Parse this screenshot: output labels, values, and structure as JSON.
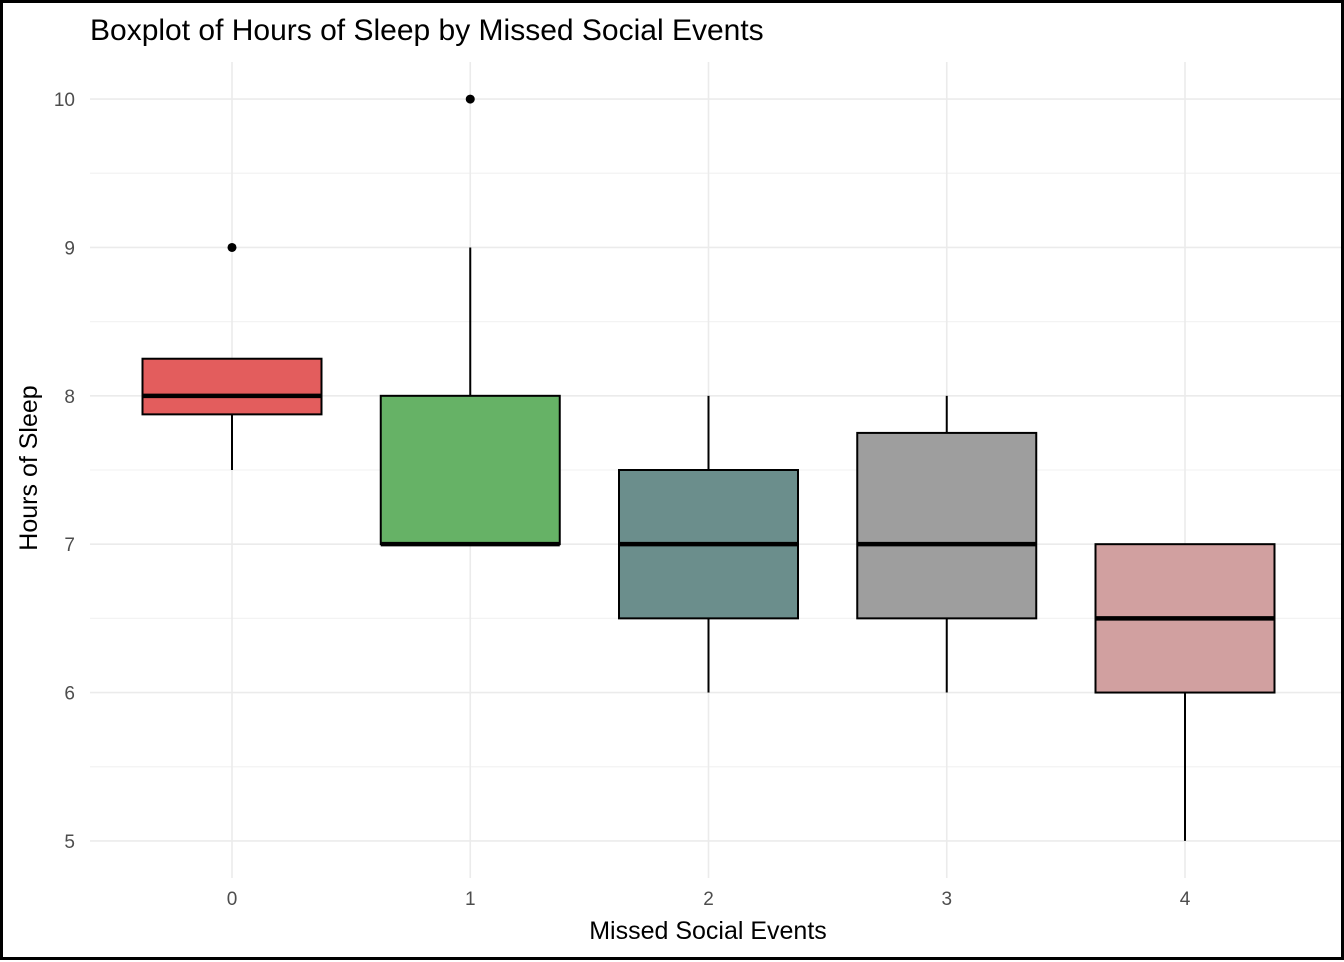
{
  "chart_data": {
    "type": "boxplot",
    "title": "Boxplot of Hours of Sleep by Missed Social Events",
    "xlabel": "Missed Social Events",
    "ylabel": "Hours of Sleep",
    "categories": [
      "0",
      "1",
      "2",
      "3",
      "4"
    ],
    "y_ticks": [
      "5",
      "6",
      "7",
      "8",
      "9",
      "10"
    ],
    "ylim": [
      4.75,
      10.25
    ],
    "grid": true,
    "boxes": [
      {
        "category": "0",
        "whisker_low": 7.5,
        "q1": 7.875,
        "median": 8,
        "q3": 8.25,
        "whisker_high": 8.25,
        "outliers": [
          9
        ],
        "color": "#E35D5D"
      },
      {
        "category": "1",
        "whisker_low": 7,
        "q1": 7,
        "median": 7,
        "q3": 8,
        "whisker_high": 9,
        "outliers": [
          10
        ],
        "color": "#66B266"
      },
      {
        "category": "2",
        "whisker_low": 6,
        "q1": 6.5,
        "median": 7,
        "q3": 7.5,
        "whisker_high": 8,
        "outliers": [],
        "color": "#6B8E8C"
      },
      {
        "category": "3",
        "whisker_low": 6,
        "q1": 6.5,
        "median": 7,
        "q3": 7.75,
        "whisker_high": 8,
        "outliers": [],
        "color": "#9E9E9E"
      },
      {
        "category": "4",
        "whisker_low": 5,
        "q1": 6,
        "median": 6.5,
        "q3": 7,
        "whisker_high": 7,
        "outliers": [],
        "color": "#D1A0A0"
      }
    ]
  }
}
